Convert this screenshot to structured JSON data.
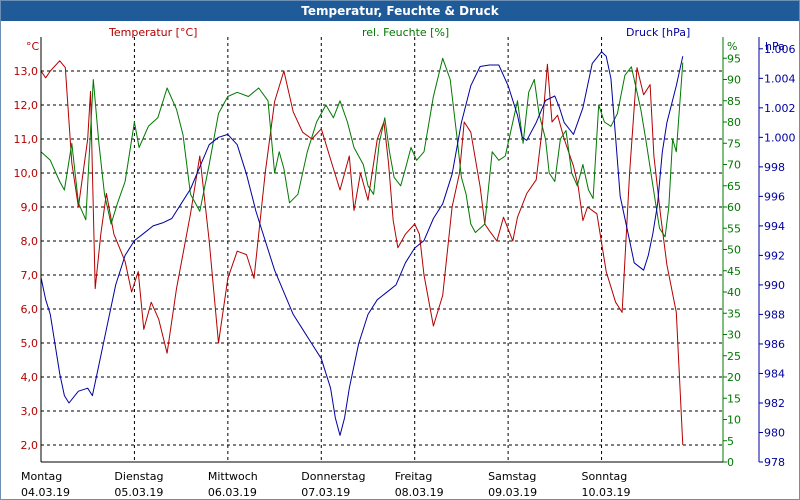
{
  "window": {
    "title": "Temperatur, Feuchte & Druck"
  },
  "chart_data": {
    "type": "line",
    "title": "Temperatur, Feuchte & Druck",
    "colors": {
      "temperature": "#b40000",
      "humidity": "#007800",
      "pressure": "#0000a0",
      "grid": "#000000",
      "title_bg": "#1f5b98"
    },
    "axes": {
      "temperature": {
        "label": "Temperatur [°C]",
        "unit": "°C",
        "range": [
          1.5,
          14.0
        ],
        "ticks": [
          "2,0",
          "3,0",
          "4,0",
          "5,0",
          "6,0",
          "7,0",
          "8,0",
          "9,0",
          "10,0",
          "11,0",
          "12,0",
          "13,0"
        ]
      },
      "humidity": {
        "label": "rel. Feuchte [%]",
        "unit": "%",
        "range": [
          0,
          100
        ],
        "ticks": [
          "0",
          "5",
          "10",
          "15",
          "20",
          "25",
          "30",
          "35",
          "40",
          "45",
          "50",
          "55",
          "60",
          "65",
          "70",
          "75",
          "80",
          "85",
          "90",
          "95"
        ]
      },
      "pressure": {
        "label": "Druck [hPa]",
        "unit": "hPa",
        "range": [
          978,
          1006.8
        ],
        "ticks": [
          "978",
          "980",
          "982",
          "984",
          "986",
          "988",
          "990",
          "992",
          "994",
          "996",
          "998",
          "1.000",
          "1.002",
          "1.004",
          "1.006"
        ]
      }
    },
    "x_range": [
      0,
      7.3
    ],
    "days": [
      {
        "name": "Montag",
        "date": "04.03.19"
      },
      {
        "name": "Dienstag",
        "date": "05.03.19"
      },
      {
        "name": "Mittwoch",
        "date": "06.03.19"
      },
      {
        "name": "Donnerstag",
        "date": "07.03.19"
      },
      {
        "name": "Freitag",
        "date": "08.03.19"
      },
      {
        "name": "Samstag",
        "date": "09.03.19"
      },
      {
        "name": "Sonntag",
        "date": "10.03.19"
      }
    ],
    "series": [
      {
        "name": "Temperatur",
        "key": "temperature",
        "points": [
          [
            0,
            13.0
          ],
          [
            0.05,
            12.8
          ],
          [
            0.1,
            13.0
          ],
          [
            0.2,
            13.3
          ],
          [
            0.26,
            13.1
          ],
          [
            0.33,
            10.3
          ],
          [
            0.4,
            9.0
          ],
          [
            0.5,
            11.0
          ],
          [
            0.53,
            12.4
          ],
          [
            0.58,
            6.6
          ],
          [
            0.64,
            8.2
          ],
          [
            0.7,
            9.4
          ],
          [
            0.78,
            8.2
          ],
          [
            0.9,
            7.4
          ],
          [
            0.97,
            6.5
          ],
          [
            1.04,
            7.1
          ],
          [
            1.1,
            5.4
          ],
          [
            1.18,
            6.2
          ],
          [
            1.26,
            5.7
          ],
          [
            1.35,
            4.7
          ],
          [
            1.45,
            6.6
          ],
          [
            1.6,
            8.8
          ],
          [
            1.7,
            10.5
          ],
          [
            1.8,
            8.0
          ],
          [
            1.9,
            5.0
          ],
          [
            2.0,
            6.9
          ],
          [
            2.1,
            7.7
          ],
          [
            2.2,
            7.6
          ],
          [
            2.28,
            6.9
          ],
          [
            2.4,
            10.0
          ],
          [
            2.5,
            12.1
          ],
          [
            2.6,
            13.0
          ],
          [
            2.7,
            11.8
          ],
          [
            2.8,
            11.2
          ],
          [
            2.9,
            11.0
          ],
          [
            3.0,
            11.3
          ],
          [
            3.1,
            10.4
          ],
          [
            3.2,
            9.5
          ],
          [
            3.3,
            10.5
          ],
          [
            3.35,
            8.9
          ],
          [
            3.42,
            10.0
          ],
          [
            3.5,
            9.2
          ],
          [
            3.6,
            11.0
          ],
          [
            3.67,
            11.5
          ],
          [
            3.72,
            10.3
          ],
          [
            3.77,
            8.6
          ],
          [
            3.82,
            7.8
          ],
          [
            3.9,
            8.2
          ],
          [
            4.0,
            8.5
          ],
          [
            4.05,
            8.2
          ],
          [
            4.1,
            7.0
          ],
          [
            4.2,
            5.5
          ],
          [
            4.3,
            6.4
          ],
          [
            4.4,
            9.0
          ],
          [
            4.48,
            10.0
          ],
          [
            4.53,
            11.5
          ],
          [
            4.6,
            11.2
          ],
          [
            4.7,
            9.6
          ],
          [
            4.75,
            8.5
          ],
          [
            4.8,
            8.3
          ],
          [
            4.88,
            8.0
          ],
          [
            4.95,
            8.7
          ],
          [
            5.05,
            8.0
          ],
          [
            5.1,
            8.7
          ],
          [
            5.2,
            9.4
          ],
          [
            5.3,
            9.8
          ],
          [
            5.36,
            11.2
          ],
          [
            5.42,
            13.2
          ],
          [
            5.47,
            11.5
          ],
          [
            5.53,
            11.7
          ],
          [
            5.6,
            11.0
          ],
          [
            5.7,
            10.2
          ],
          [
            5.75,
            9.6
          ],
          [
            5.8,
            8.6
          ],
          [
            5.85,
            9.0
          ],
          [
            5.95,
            8.8
          ],
          [
            6.05,
            7.1
          ],
          [
            6.15,
            6.2
          ],
          [
            6.22,
            5.9
          ],
          [
            6.3,
            10.0
          ],
          [
            6.38,
            13.1
          ],
          [
            6.45,
            12.3
          ],
          [
            6.52,
            12.6
          ],
          [
            6.56,
            10.5
          ],
          [
            6.63,
            8.8
          ],
          [
            6.7,
            7.3
          ],
          [
            6.8,
            5.9
          ],
          [
            6.87,
            2.0
          ]
        ]
      },
      {
        "name": "rel. Feuchte",
        "key": "humidity",
        "points": [
          [
            0,
            73
          ],
          [
            0.05,
            72
          ],
          [
            0.1,
            71
          ],
          [
            0.2,
            66
          ],
          [
            0.25,
            64
          ],
          [
            0.33,
            75
          ],
          [
            0.4,
            61
          ],
          [
            0.48,
            57
          ],
          [
            0.56,
            90
          ],
          [
            0.62,
            75
          ],
          [
            0.68,
            63
          ],
          [
            0.75,
            56
          ],
          [
            0.82,
            61
          ],
          [
            0.9,
            66
          ],
          [
            1.0,
            80
          ],
          [
            1.05,
            74
          ],
          [
            1.15,
            79
          ],
          [
            1.25,
            81
          ],
          [
            1.35,
            88
          ],
          [
            1.45,
            83
          ],
          [
            1.52,
            77
          ],
          [
            1.6,
            63
          ],
          [
            1.7,
            59
          ],
          [
            1.8,
            70
          ],
          [
            1.9,
            82
          ],
          [
            2.0,
            86
          ],
          [
            2.1,
            87
          ],
          [
            2.22,
            86
          ],
          [
            2.33,
            88
          ],
          [
            2.43,
            85
          ],
          [
            2.5,
            68
          ],
          [
            2.55,
            73
          ],
          [
            2.6,
            69
          ],
          [
            2.66,
            61
          ],
          [
            2.75,
            63
          ],
          [
            2.85,
            73
          ],
          [
            2.95,
            80
          ],
          [
            3.05,
            84
          ],
          [
            3.13,
            81
          ],
          [
            3.2,
            85
          ],
          [
            3.28,
            80
          ],
          [
            3.35,
            74
          ],
          [
            3.4,
            72
          ],
          [
            3.45,
            70
          ],
          [
            3.5,
            65
          ],
          [
            3.56,
            63
          ],
          [
            3.62,
            75
          ],
          [
            3.68,
            81
          ],
          [
            3.73,
            73
          ],
          [
            3.78,
            67
          ],
          [
            3.85,
            65
          ],
          [
            3.9,
            69
          ],
          [
            3.96,
            74
          ],
          [
            4.02,
            71
          ],
          [
            4.1,
            73
          ],
          [
            4.2,
            86
          ],
          [
            4.3,
            95
          ],
          [
            4.38,
            90
          ],
          [
            4.45,
            77
          ],
          [
            4.5,
            67
          ],
          [
            4.55,
            63
          ],
          [
            4.6,
            56
          ],
          [
            4.65,
            54
          ],
          [
            4.75,
            56
          ],
          [
            4.83,
            73
          ],
          [
            4.9,
            71
          ],
          [
            4.97,
            72
          ],
          [
            5.05,
            80
          ],
          [
            5.1,
            85
          ],
          [
            5.16,
            75
          ],
          [
            5.22,
            87
          ],
          [
            5.28,
            90
          ],
          [
            5.33,
            82
          ],
          [
            5.4,
            76
          ],
          [
            5.44,
            68
          ],
          [
            5.5,
            66
          ],
          [
            5.56,
            76
          ],
          [
            5.62,
            78
          ],
          [
            5.68,
            68
          ],
          [
            5.74,
            65
          ],
          [
            5.8,
            70
          ],
          [
            5.86,
            64
          ],
          [
            5.91,
            62
          ],
          [
            5.97,
            84
          ],
          [
            6.03,
            80
          ],
          [
            6.1,
            79
          ],
          [
            6.17,
            82
          ],
          [
            6.25,
            91
          ],
          [
            6.32,
            93
          ],
          [
            6.37,
            88
          ],
          [
            6.42,
            83
          ],
          [
            6.48,
            75
          ],
          [
            6.55,
            65
          ],
          [
            6.62,
            55
          ],
          [
            6.68,
            53
          ],
          [
            6.72,
            60
          ],
          [
            6.76,
            76
          ],
          [
            6.8,
            73
          ],
          [
            6.87,
            94
          ]
        ]
      },
      {
        "name": "Druck",
        "key": "pressure",
        "points": [
          [
            0,
            990.5
          ],
          [
            0.05,
            989
          ],
          [
            0.1,
            988
          ],
          [
            0.2,
            984
          ],
          [
            0.25,
            982.5
          ],
          [
            0.3,
            982
          ],
          [
            0.4,
            982.8
          ],
          [
            0.5,
            983
          ],
          [
            0.55,
            982.5
          ],
          [
            0.6,
            984
          ],
          [
            0.7,
            987
          ],
          [
            0.8,
            990
          ],
          [
            0.9,
            992
          ],
          [
            1.0,
            993
          ],
          [
            1.1,
            993.5
          ],
          [
            1.2,
            994
          ],
          [
            1.3,
            994.2
          ],
          [
            1.4,
            994.5
          ],
          [
            1.5,
            995.5
          ],
          [
            1.6,
            996.5
          ],
          [
            1.7,
            998
          ],
          [
            1.8,
            999.5
          ],
          [
            1.9,
            1000.0
          ],
          [
            2.0,
            1000.2
          ],
          [
            2.1,
            999.5
          ],
          [
            2.2,
            997.5
          ],
          [
            2.3,
            995
          ],
          [
            2.4,
            993
          ],
          [
            2.5,
            991
          ],
          [
            2.6,
            989.5
          ],
          [
            2.7,
            988
          ],
          [
            2.8,
            987
          ],
          [
            2.9,
            986
          ],
          [
            3.0,
            985
          ],
          [
            3.1,
            983
          ],
          [
            3.15,
            981
          ],
          [
            3.2,
            979.8
          ],
          [
            3.25,
            981
          ],
          [
            3.3,
            983
          ],
          [
            3.4,
            986
          ],
          [
            3.5,
            988
          ],
          [
            3.6,
            989
          ],
          [
            3.7,
            989.5
          ],
          [
            3.8,
            990
          ],
          [
            3.9,
            991.5
          ],
          [
            4.0,
            992.5
          ],
          [
            4.1,
            993
          ],
          [
            4.2,
            994.5
          ],
          [
            4.3,
            995.5
          ],
          [
            4.4,
            997.5
          ],
          [
            4.5,
            1001
          ],
          [
            4.6,
            1003.5
          ],
          [
            4.7,
            1004.8
          ],
          [
            4.8,
            1004.9
          ],
          [
            4.9,
            1004.9
          ],
          [
            5.0,
            1003.5
          ],
          [
            5.1,
            1001.5
          ],
          [
            5.15,
            1000
          ],
          [
            5.2,
            999.8
          ],
          [
            5.3,
            1001
          ],
          [
            5.4,
            1002.5
          ],
          [
            5.5,
            1002.8
          ],
          [
            5.55,
            1002
          ],
          [
            5.6,
            1001
          ],
          [
            5.7,
            1000.2
          ],
          [
            5.8,
            1002
          ],
          [
            5.9,
            1005
          ],
          [
            6.0,
            1005.8
          ],
          [
            6.05,
            1005.5
          ],
          [
            6.1,
            1004
          ],
          [
            6.15,
            1000
          ],
          [
            6.2,
            996
          ],
          [
            6.3,
            993
          ],
          [
            6.35,
            991.5
          ],
          [
            6.45,
            991
          ],
          [
            6.5,
            992
          ],
          [
            6.55,
            993.5
          ],
          [
            6.6,
            995.5
          ],
          [
            6.65,
            999
          ],
          [
            6.7,
            1001
          ],
          [
            6.8,
            1003.5
          ],
          [
            6.87,
            1005.5
          ]
        ]
      }
    ]
  }
}
